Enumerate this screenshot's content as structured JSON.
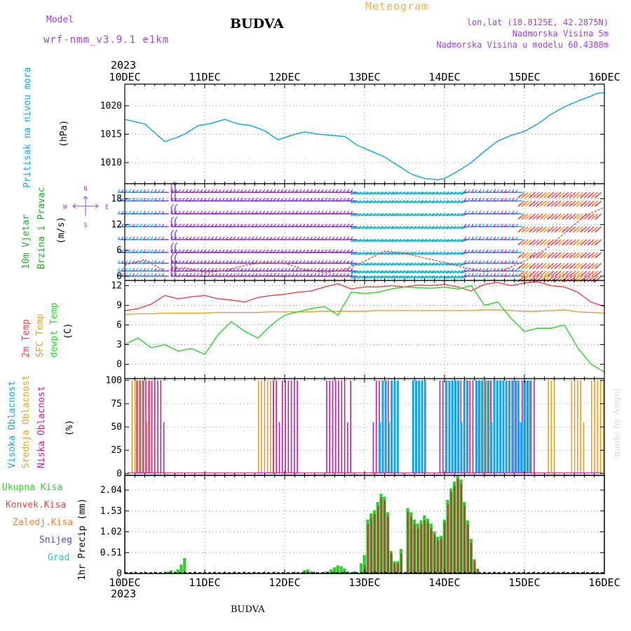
{
  "header": {
    "model_label": "Model",
    "model_name": "wrf-nmm_v3.9.1 e1km",
    "station_title": "BUDVA",
    "meteogram_label": "Meteogram",
    "lonlat": "lon,lat (18.8125E, 42.2875N)",
    "altitude": "Nadmorska Visina 5m",
    "model_altitude": "Nadmorska Visina u modelu 60.4388m",
    "year_top": "2023",
    "year_bottom": "2023",
    "footer_station": "BUDVA",
    "watermark": "made by Angel"
  },
  "colors": {
    "pressure": "#1aa3e8",
    "temp2m": "#e84646",
    "sfc": "#e0a030",
    "dewpt": "#2bd12b",
    "high_cloud": "#1aa3e8",
    "mid_cloud": "#e0a030",
    "low_cloud": "#c020a0",
    "total_precip": "#33cc33",
    "conv_precip": "#e84646",
    "frz_precip": "#f08030",
    "snow": "#4a4ae8",
    "hail": "#22ccbb",
    "wind_label": "#22aa22",
    "compass": "#a040e0",
    "header_purple": "#a040e0",
    "meteogram": "#e8b050"
  },
  "labels": {
    "pressure_title": "Pritisak na nivou mora",
    "pressure_unit": "(hPa)",
    "wind_title1": "10m Vjetar",
    "wind_title2": "Brzina i Pravac",
    "wind_unit": "(m/s)",
    "compass_n": "N",
    "compass_w": "W",
    "compass_e": "E",
    "compass_s": "S",
    "temp_title1": "2m Temp",
    "temp_title2": "SFC Temp",
    "temp_title3": "dewpt Temp",
    "temp_unit": "(C)",
    "cloud_title1": "Visoka Oblacnost",
    "cloud_title2": "Srednja Oblacnost",
    "cloud_title3": "Niska Oblacnost",
    "cloud_unit": "(%)",
    "precip_total": "Ukupna Kisa",
    "precip_conv": "Konvek.Kisa",
    "precip_frz": "Zaledj.Kisa",
    "precip_snow": "Snijeg",
    "precip_hail": "Grad",
    "precip_unit": "1hr Precip (mm)"
  },
  "chart_data": {
    "type": "meteogram",
    "x_start": "2023-12-10T00",
    "x_end": "2023-12-16T00",
    "day_labels": [
      "10DEC",
      "11DEC",
      "12DEC",
      "13DEC",
      "14DEC",
      "15DEC",
      "16DEC"
    ],
    "panels": {
      "pressure": {
        "type": "line",
        "yticks": [
          1010,
          1015,
          1020
        ],
        "ylim": [
          1006.3,
          1023.8
        ],
        "hours": [
          0,
          6,
          12,
          15,
          18,
          22,
          26,
          30,
          34,
          38,
          42,
          46,
          50,
          54,
          58,
          62,
          66,
          70,
          74,
          78,
          82,
          86,
          90,
          94,
          96,
          100,
          104,
          108,
          112,
          116,
          120,
          124,
          128,
          132,
          136,
          140,
          142,
          144
        ],
        "values": [
          1017.6,
          1016.8,
          1013.7,
          1014.3,
          1015.0,
          1016.5,
          1016.9,
          1017.6,
          1016.8,
          1016.5,
          1015.6,
          1014.0,
          1014.8,
          1015.4,
          1015.0,
          1014.8,
          1014.6,
          1013.0,
          1012.0,
          1011.0,
          1009.5,
          1008.0,
          1007.2,
          1007.0,
          1007.2,
          1008.5,
          1010.0,
          1012.0,
          1013.8,
          1014.8,
          1015.5,
          1016.8,
          1018.5,
          1019.8,
          1020.8,
          1021.7,
          1022.2,
          1022.3
        ]
      },
      "wind": {
        "type": "barbs",
        "yticks": [
          0,
          6,
          12,
          18
        ],
        "ylim": [
          -1,
          21.5
        ],
        "speed_hours": [
          0,
          6,
          12,
          18,
          24,
          30,
          36,
          42,
          48,
          54,
          60,
          66,
          72,
          78,
          84,
          90,
          96,
          102,
          108,
          114,
          120,
          126,
          132,
          138,
          144
        ],
        "speed_values": [
          2.6,
          3.8,
          1.2,
          2.0,
          0.8,
          1.3,
          2.5,
          3.2,
          3.0,
          1.5,
          0.8,
          1.5,
          3.5,
          5.8,
          5.4,
          4.2,
          3.2,
          2.0,
          1.0,
          1.5,
          3.5,
          6.0,
          10.0,
          14.0,
          16.0
        ]
      },
      "temperature": {
        "type": "line",
        "yticks": [
          0,
          3,
          6,
          9,
          12
        ],
        "ylim": [
          -2.2,
          12.8
        ],
        "hours": [
          0,
          4,
          8,
          12,
          16,
          20,
          24,
          28,
          32,
          36,
          40,
          44,
          48,
          52,
          56,
          60,
          64,
          68,
          72,
          76,
          80,
          84,
          88,
          92,
          96,
          100,
          104,
          108,
          112,
          116,
          120,
          124,
          128,
          132,
          136,
          140,
          144
        ],
        "t2m": [
          8.2,
          8.5,
          9.2,
          10.5,
          10.0,
          10.3,
          10.5,
          10.0,
          9.8,
          9.5,
          10.2,
          10.5,
          10.7,
          11.0,
          11.2,
          11.8,
          12.3,
          11.5,
          11.8,
          11.8,
          12.0,
          11.8,
          12.1,
          12.0,
          12.2,
          11.8,
          11.2,
          12.2,
          12.5,
          12.0,
          12.4,
          12.6,
          12.0,
          11.8,
          11.0,
          9.5,
          8.8
        ],
        "sfc": [
          7.6,
          7.7,
          7.7,
          7.8,
          7.8,
          7.8,
          7.8,
          7.9,
          7.9,
          7.9,
          7.9,
          8.0,
          8.0,
          8.0,
          8.0,
          8.1,
          8.1,
          8.1,
          8.1,
          8.2,
          8.2,
          8.2,
          8.2,
          8.2,
          8.2,
          8.2,
          8.2,
          8.3,
          8.3,
          8.2,
          8.1,
          8.1,
          8.2,
          8.3,
          8.0,
          7.9,
          7.8
        ],
        "dewpt": [
          3.0,
          4.0,
          2.5,
          3.0,
          2.0,
          2.4,
          1.5,
          4.5,
          6.5,
          5.0,
          4.0,
          6.0,
          7.5,
          8.0,
          8.5,
          8.8,
          7.5,
          11.0,
          10.8,
          11.0,
          11.5,
          11.8,
          11.7,
          11.6,
          11.8,
          11.5,
          12.0,
          9.0,
          9.5,
          7.0,
          5.0,
          5.5,
          5.5,
          6.0,
          2.5,
          0.0,
          -1.2
        ]
      },
      "clouds": {
        "type": "bar",
        "yticks": [
          0,
          25,
          50,
          75,
          100
        ],
        "ylim": [
          -2,
          102
        ]
      },
      "precipitation": {
        "type": "bar",
        "yticks": [
          0,
          0.51,
          1.02,
          1.53,
          2.04
        ],
        "ytick_labels": [
          "0",
          "0.51",
          "1.02",
          "1.53",
          "2.04"
        ],
        "ylim": [
          0,
          2.4
        ],
        "hours": [
          13,
          14,
          16,
          17,
          18,
          54,
          55,
          56,
          61,
          62,
          63,
          64,
          65,
          66,
          67,
          68,
          69,
          71,
          72,
          73,
          74,
          75,
          76,
          77,
          78,
          79,
          80,
          81,
          82,
          83,
          85,
          86,
          87,
          88,
          89,
          90,
          91,
          92,
          93,
          94,
          95,
          96,
          97,
          98,
          99,
          100,
          101,
          102,
          103,
          104,
          105,
          106
        ],
        "total": [
          0.05,
          0.08,
          0.1,
          0.22,
          0.38,
          0.08,
          0.1,
          0.05,
          0.05,
          0.1,
          0.15,
          0.2,
          0.18,
          0.12,
          0.05,
          0.02,
          0.05,
          0.25,
          0.45,
          1.32,
          1.47,
          1.55,
          1.75,
          1.95,
          1.88,
          1.5,
          0.55,
          0.3,
          0.3,
          0.6,
          1.6,
          1.5,
          1.32,
          1.22,
          1.3,
          1.42,
          1.34,
          1.22,
          1.03,
          0.9,
          0.92,
          1.32,
          1.8,
          2.08,
          2.25,
          2.4,
          2.3,
          1.75,
          1.3,
          0.85,
          0.35,
          0.12
        ],
        "convective": [
          0,
          0,
          0,
          0,
          0,
          0,
          0,
          0,
          0,
          0,
          0,
          0,
          0,
          0,
          0,
          0,
          0,
          0,
          0.2,
          1.2,
          1.35,
          1.45,
          1.65,
          1.85,
          1.78,
          1.4,
          0.5,
          0.25,
          0.25,
          0.5,
          1.5,
          1.4,
          1.2,
          1.1,
          1.2,
          1.3,
          1.25,
          1.1,
          0.95,
          0.8,
          0.85,
          1.25,
          1.7,
          2.0,
          2.15,
          2.32,
          2.2,
          1.65,
          1.2,
          0.75,
          0.3,
          0.08
        ]
      }
    }
  }
}
